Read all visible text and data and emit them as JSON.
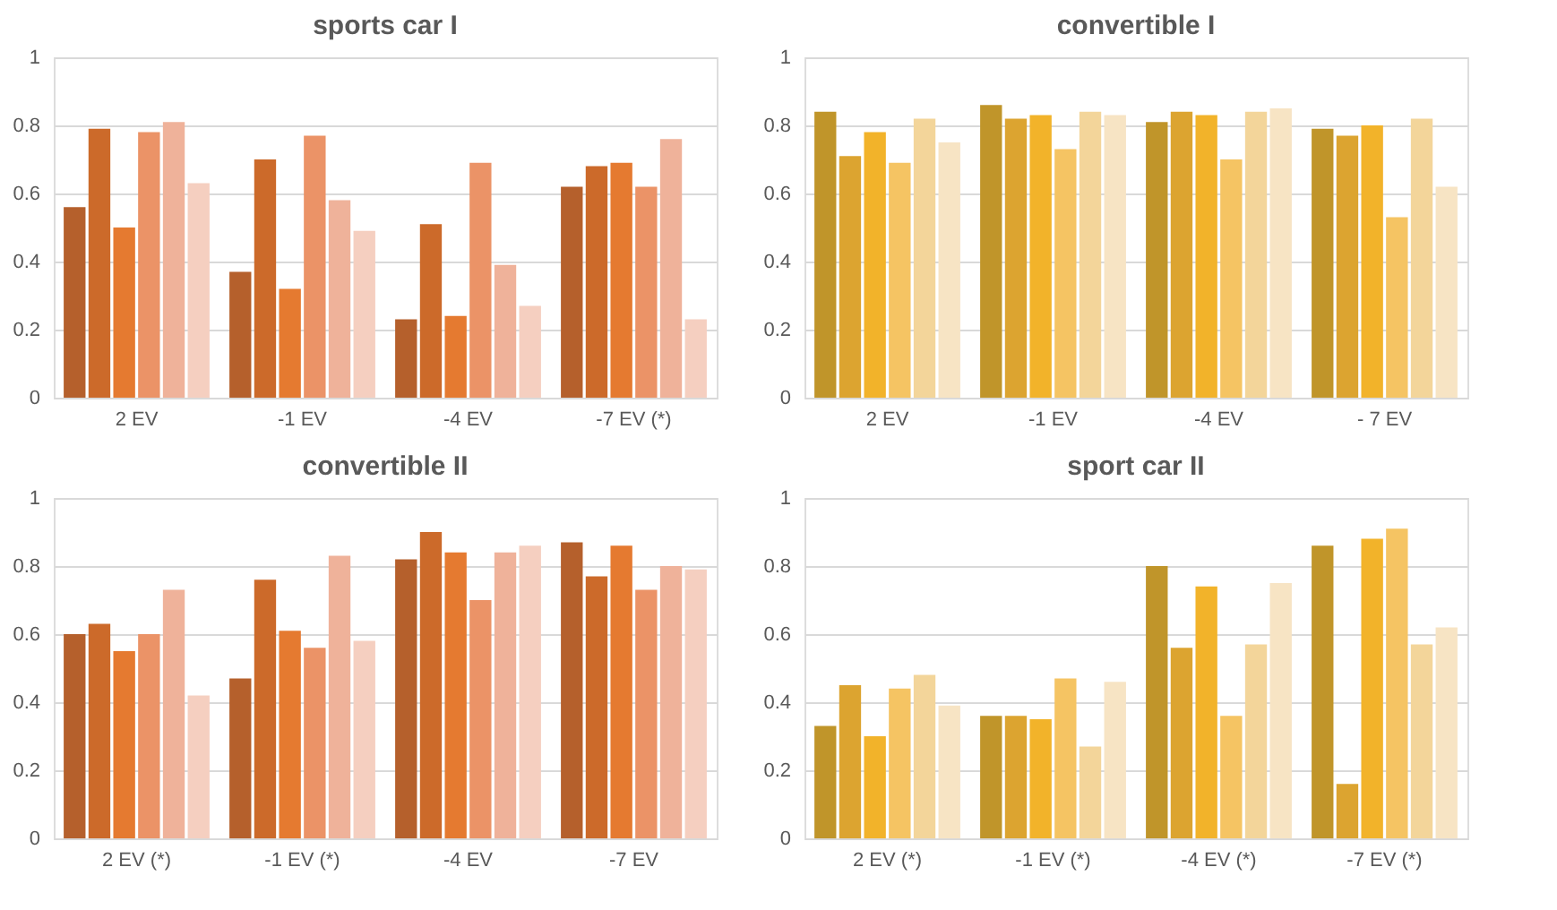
{
  "chart_data": [
    {
      "type": "bar",
      "title": "sports  car I",
      "categories": [
        "2 EV",
        "-1 EV",
        "-4 EV",
        "-7 EV (*)"
      ],
      "ylim": [
        0,
        1
      ],
      "yticks": [
        0,
        0.2,
        0.4,
        0.6,
        0.8,
        1
      ],
      "grid": "y",
      "series": [
        {
          "color": "#b5602c",
          "values": [
            0.56,
            0.37,
            0.23,
            0.62
          ]
        },
        {
          "color": "#cc6a2a",
          "values": [
            0.79,
            0.7,
            0.51,
            0.68
          ]
        },
        {
          "color": "#e57a30",
          "values": [
            0.5,
            0.32,
            0.24,
            0.69
          ]
        },
        {
          "color": "#eb9367",
          "values": [
            0.78,
            0.77,
            0.69,
            0.62
          ]
        },
        {
          "color": "#efb29a",
          "values": [
            0.81,
            0.58,
            0.39,
            0.76
          ]
        },
        {
          "color": "#f5cfc0",
          "values": [
            0.63,
            0.49,
            0.27,
            0.23
          ]
        }
      ]
    },
    {
      "type": "bar",
      "title": "convertible  I",
      "categories": [
        "2 EV",
        "-1 EV",
        "-4 EV",
        "- 7 EV"
      ],
      "ylim": [
        0,
        1
      ],
      "yticks": [
        0,
        0.2,
        0.4,
        0.6,
        0.8,
        1
      ],
      "grid": "y",
      "series": [
        {
          "color": "#c0952a",
          "values": [
            0.84,
            0.86,
            0.81,
            0.79
          ]
        },
        {
          "color": "#dca430",
          "values": [
            0.71,
            0.82,
            0.84,
            0.77
          ]
        },
        {
          "color": "#f2b32a",
          "values": [
            0.78,
            0.83,
            0.83,
            0.8
          ]
        },
        {
          "color": "#f5c463",
          "values": [
            0.69,
            0.73,
            0.7,
            0.53
          ]
        },
        {
          "color": "#f3d59a",
          "values": [
            0.82,
            0.84,
            0.84,
            0.82
          ]
        },
        {
          "color": "#f7e4c4",
          "values": [
            0.75,
            0.83,
            0.85,
            0.62
          ]
        }
      ]
    },
    {
      "type": "bar",
      "title": "convertible  II",
      "categories": [
        "2 EV (*)",
        "-1 EV (*)",
        "-4 EV",
        "-7 EV"
      ],
      "ylim": [
        0,
        1
      ],
      "yticks": [
        0,
        0.2,
        0.4,
        0.6,
        0.8,
        1
      ],
      "grid": "y",
      "series": [
        {
          "color": "#b5602c",
          "values": [
            0.6,
            0.47,
            0.82,
            0.87
          ]
        },
        {
          "color": "#cc6a2a",
          "values": [
            0.63,
            0.76,
            0.9,
            0.77
          ]
        },
        {
          "color": "#e57a30",
          "values": [
            0.55,
            0.61,
            0.84,
            0.86
          ]
        },
        {
          "color": "#eb9367",
          "values": [
            0.6,
            0.56,
            0.7,
            0.73
          ]
        },
        {
          "color": "#efb29a",
          "values": [
            0.73,
            0.83,
            0.84,
            0.8
          ]
        },
        {
          "color": "#f5cfc0",
          "values": [
            0.42,
            0.58,
            0.86,
            0.79
          ]
        }
      ]
    },
    {
      "type": "bar",
      "title": "sport  car II",
      "categories": [
        "2 EV (*)",
        "-1 EV (*)",
        "-4 EV (*)",
        "-7 EV (*)"
      ],
      "ylim": [
        0,
        1
      ],
      "yticks": [
        0,
        0.2,
        0.4,
        0.6,
        0.8,
        1
      ],
      "grid": "y",
      "series": [
        {
          "color": "#c0952a",
          "values": [
            0.33,
            0.36,
            0.8,
            0.86
          ]
        },
        {
          "color": "#dca430",
          "values": [
            0.45,
            0.36,
            0.56,
            0.16
          ]
        },
        {
          "color": "#f2b32a",
          "values": [
            0.3,
            0.35,
            0.74,
            0.88
          ]
        },
        {
          "color": "#f5c463",
          "values": [
            0.44,
            0.47,
            0.36,
            0.91
          ]
        },
        {
          "color": "#f3d59a",
          "values": [
            0.48,
            0.27,
            0.57,
            0.57
          ]
        },
        {
          "color": "#f7e4c4",
          "values": [
            0.39,
            0.46,
            0.75,
            0.62
          ]
        }
      ]
    }
  ]
}
